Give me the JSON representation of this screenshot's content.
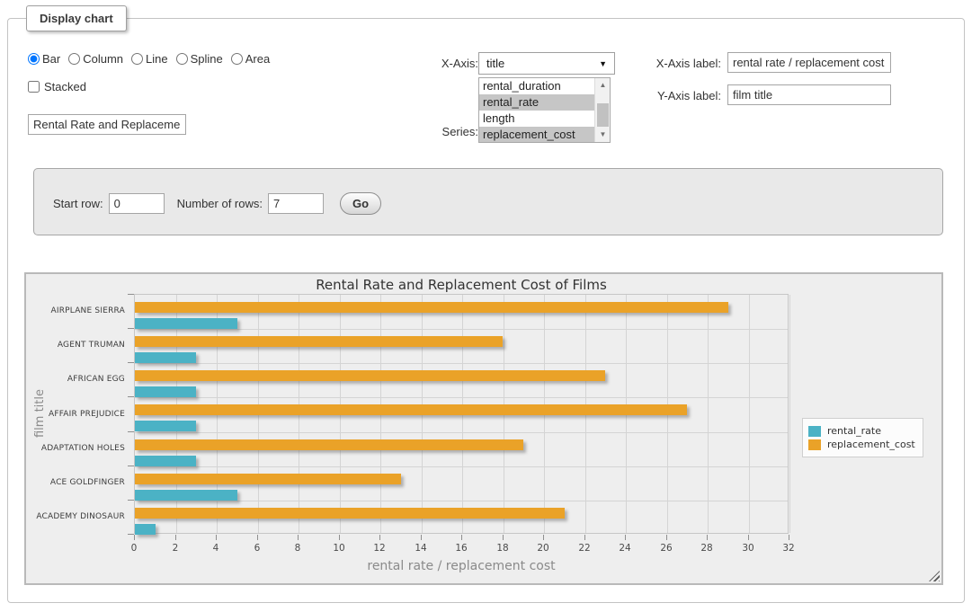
{
  "panel": {
    "legend": "Display chart"
  },
  "chart_type": {
    "options": [
      {
        "label": "Bar",
        "selected": true
      },
      {
        "label": "Column",
        "selected": false
      },
      {
        "label": "Line",
        "selected": false
      },
      {
        "label": "Spline",
        "selected": false
      },
      {
        "label": "Area",
        "selected": false
      }
    ]
  },
  "stacked": {
    "label": "Stacked",
    "checked": false
  },
  "title_input": {
    "value": "Rental Rate and Replacement Cost of Films"
  },
  "x_axis_picker": {
    "label": "X-Axis:",
    "selected": "title"
  },
  "series_picker": {
    "label": "Series:",
    "options": [
      {
        "label": "rental_duration",
        "selected": false
      },
      {
        "label": "rental_rate",
        "selected": true
      },
      {
        "label": "length",
        "selected": false
      },
      {
        "label": "replacement_cost",
        "selected": true
      }
    ]
  },
  "x_axis_label_field": {
    "label": "X-Axis label:",
    "value": "rental rate / replacement cost"
  },
  "y_axis_label_field": {
    "label": "Y-Axis label:",
    "value": "film title"
  },
  "row_controls": {
    "start_row_label": "Start row:",
    "start_row_value": "0",
    "num_rows_label": "Number of rows:",
    "num_rows_value": "7",
    "go_label": "Go"
  },
  "chart_data": {
    "type": "bar",
    "orientation": "horizontal",
    "title": "Rental Rate and Replacement Cost of Films",
    "categories": [
      "AIRPLANE SIERRA",
      "AGENT TRUMAN",
      "AFRICAN EGG",
      "AFFAIR PREJUDICE",
      "ADAPTATION HOLES",
      "ACE GOLDFINGER",
      "ACADEMY DINOSAUR"
    ],
    "series": [
      {
        "name": "rental_rate",
        "color": "#4bb2c5",
        "values": [
          4.99,
          2.99,
          2.99,
          2.99,
          2.99,
          4.99,
          0.99
        ]
      },
      {
        "name": "replacement_cost",
        "color": "#eaa228",
        "values": [
          28.99,
          17.99,
          22.99,
          26.99,
          18.99,
          12.99,
          20.99
        ]
      }
    ],
    "bar_draw_order": [
      "replacement_cost",
      "rental_rate"
    ],
    "xlabel": "rental rate / replacement cost",
    "ylabel": "film title",
    "xlim": [
      0,
      32
    ],
    "xtick_step": 2,
    "grid": true,
    "legend_position": "right"
  }
}
